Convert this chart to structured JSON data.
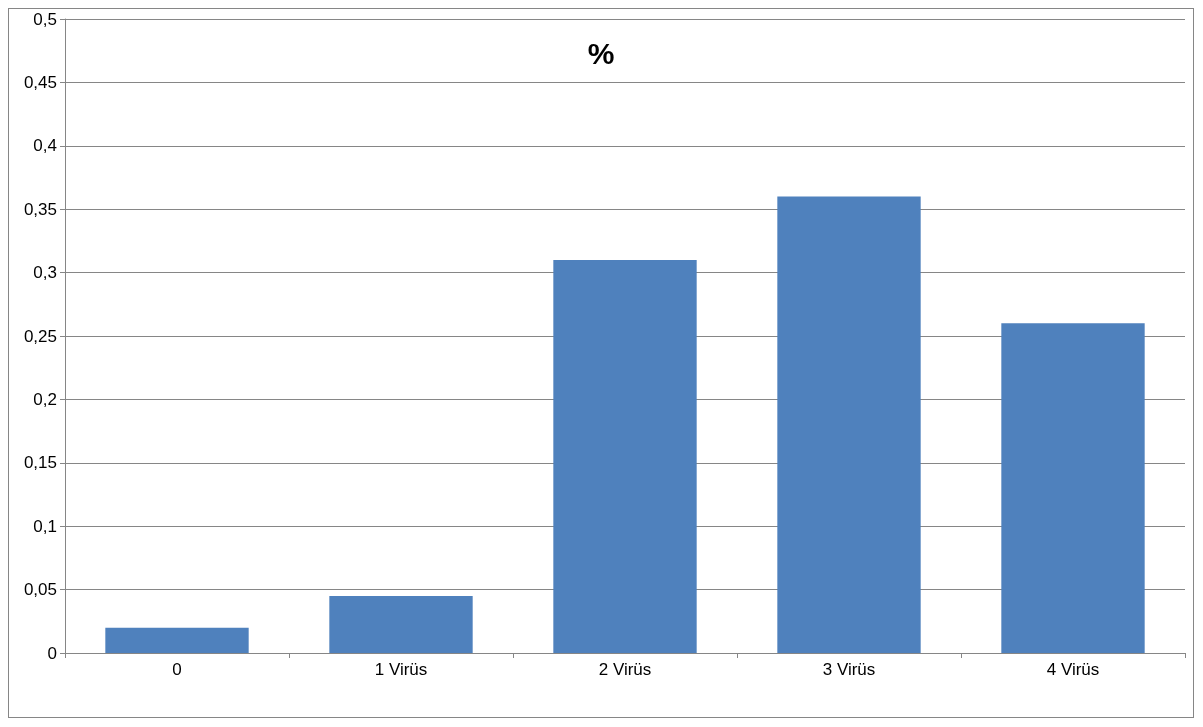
{
  "chart_data": {
    "type": "bar",
    "title": "%",
    "categories": [
      "0",
      "1 Virüs",
      "2 Virüs",
      "3 Virüs",
      "4 Virüs"
    ],
    "values": [
      0.02,
      0.045,
      0.31,
      0.36,
      0.26
    ],
    "color": "#4f81bd",
    "ylim": [
      0,
      0.5
    ],
    "yticks": [
      0,
      {
        "value": 0.05,
        "label": "0,05"
      },
      {
        "value": 0.1,
        "label": "0,1"
      },
      {
        "value": 0.15,
        "label": "0,15"
      },
      {
        "value": 0.2,
        "label": "0,2"
      },
      {
        "value": 0.25,
        "label": "0,25"
      },
      {
        "value": 0.3,
        "label": "0,3"
      },
      {
        "value": 0.35,
        "label": "0,35"
      },
      {
        "value": 0.4,
        "label": "0,4"
      },
      {
        "value": 0.45,
        "label": "0,45"
      },
      {
        "value": 0.5,
        "label": "0,5"
      }
    ],
    "grid": "y"
  }
}
